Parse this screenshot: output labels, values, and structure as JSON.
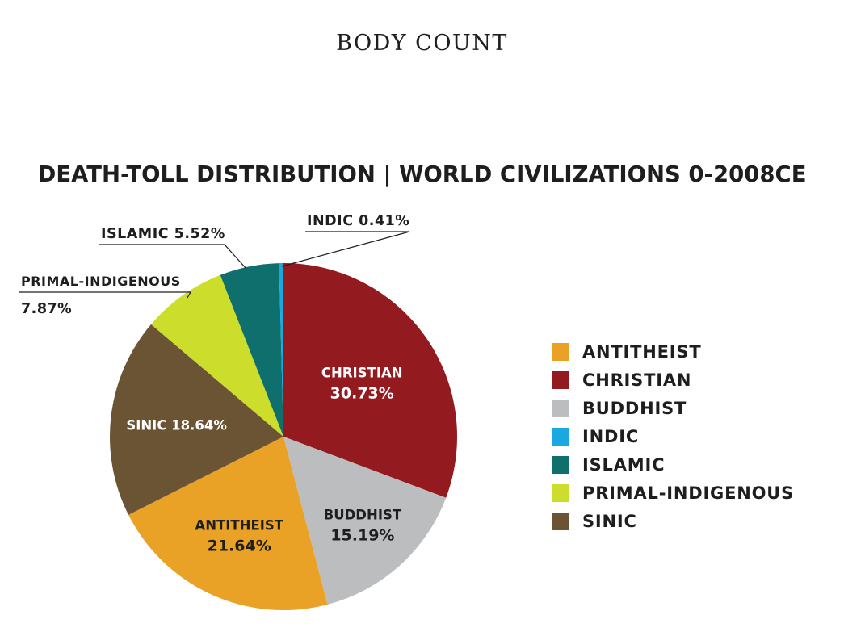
{
  "page": {
    "supertitle": "BODY COUNT"
  },
  "chart_data": {
    "type": "pie",
    "title": "DEATH-TOLL DISTRIBUTION | WORLD CIVILIZATIONS 0-2008CE",
    "unit": "%",
    "slices": [
      {
        "name": "CHRISTIAN",
        "value": 30.73,
        "color": "#931a1f",
        "label_lines": [
          "CHRISTIAN",
          "30.73%"
        ],
        "label_color": "#ffffff",
        "callout": false
      },
      {
        "name": "BUDDHIST",
        "value": 15.19,
        "color": "#bcbdbf",
        "label_lines": [
          "BUDDHIST",
          "15.19%"
        ],
        "label_color": "#1e1e1e",
        "callout": false
      },
      {
        "name": "ANTITHEIST",
        "value": 21.64,
        "color": "#e9a126",
        "label_lines": [
          "ANTITHEIST",
          "21.64%"
        ],
        "label_color": "#1e1e1e",
        "callout": false
      },
      {
        "name": "SINIC",
        "value": 18.64,
        "color": "#6b5434",
        "label_lines": [
          "SINIC 18.64%"
        ],
        "label_color": "#ffffff",
        "callout": false
      },
      {
        "name": "PRIMAL-INDIGENOUS",
        "value": 7.87,
        "color": "#cddd2c",
        "label_lines": [
          "PRIMAL-INDIGENOUS",
          "7.87%"
        ],
        "label_color": "#1e1e1e",
        "callout": true
      },
      {
        "name": "ISLAMIC",
        "value": 5.52,
        "color": "#0f6f6d",
        "label_lines": [
          "ISLAMIC 5.52%"
        ],
        "label_color": "#1e1e1e",
        "callout": true
      },
      {
        "name": "INDIC",
        "value": 0.41,
        "color": "#1aa8e0",
        "label_lines": [
          "INDIC 0.41%"
        ],
        "label_color": "#1e1e1e",
        "callout": true
      }
    ],
    "legend_position": "right",
    "legend": [
      {
        "label": "ANTITHEIST",
        "color": "#e9a126"
      },
      {
        "label": "CHRISTIAN",
        "color": "#931a1f"
      },
      {
        "label": "BUDDHIST",
        "color": "#bcbdbf"
      },
      {
        "label": "INDIC",
        "color": "#1aa8e0"
      },
      {
        "label": "ISLAMIC",
        "color": "#0f6f6d"
      },
      {
        "label": "PRIMAL-INDIGENOUS",
        "color": "#cddd2c"
      },
      {
        "label": "SINIC",
        "color": "#6b5434"
      }
    ]
  }
}
